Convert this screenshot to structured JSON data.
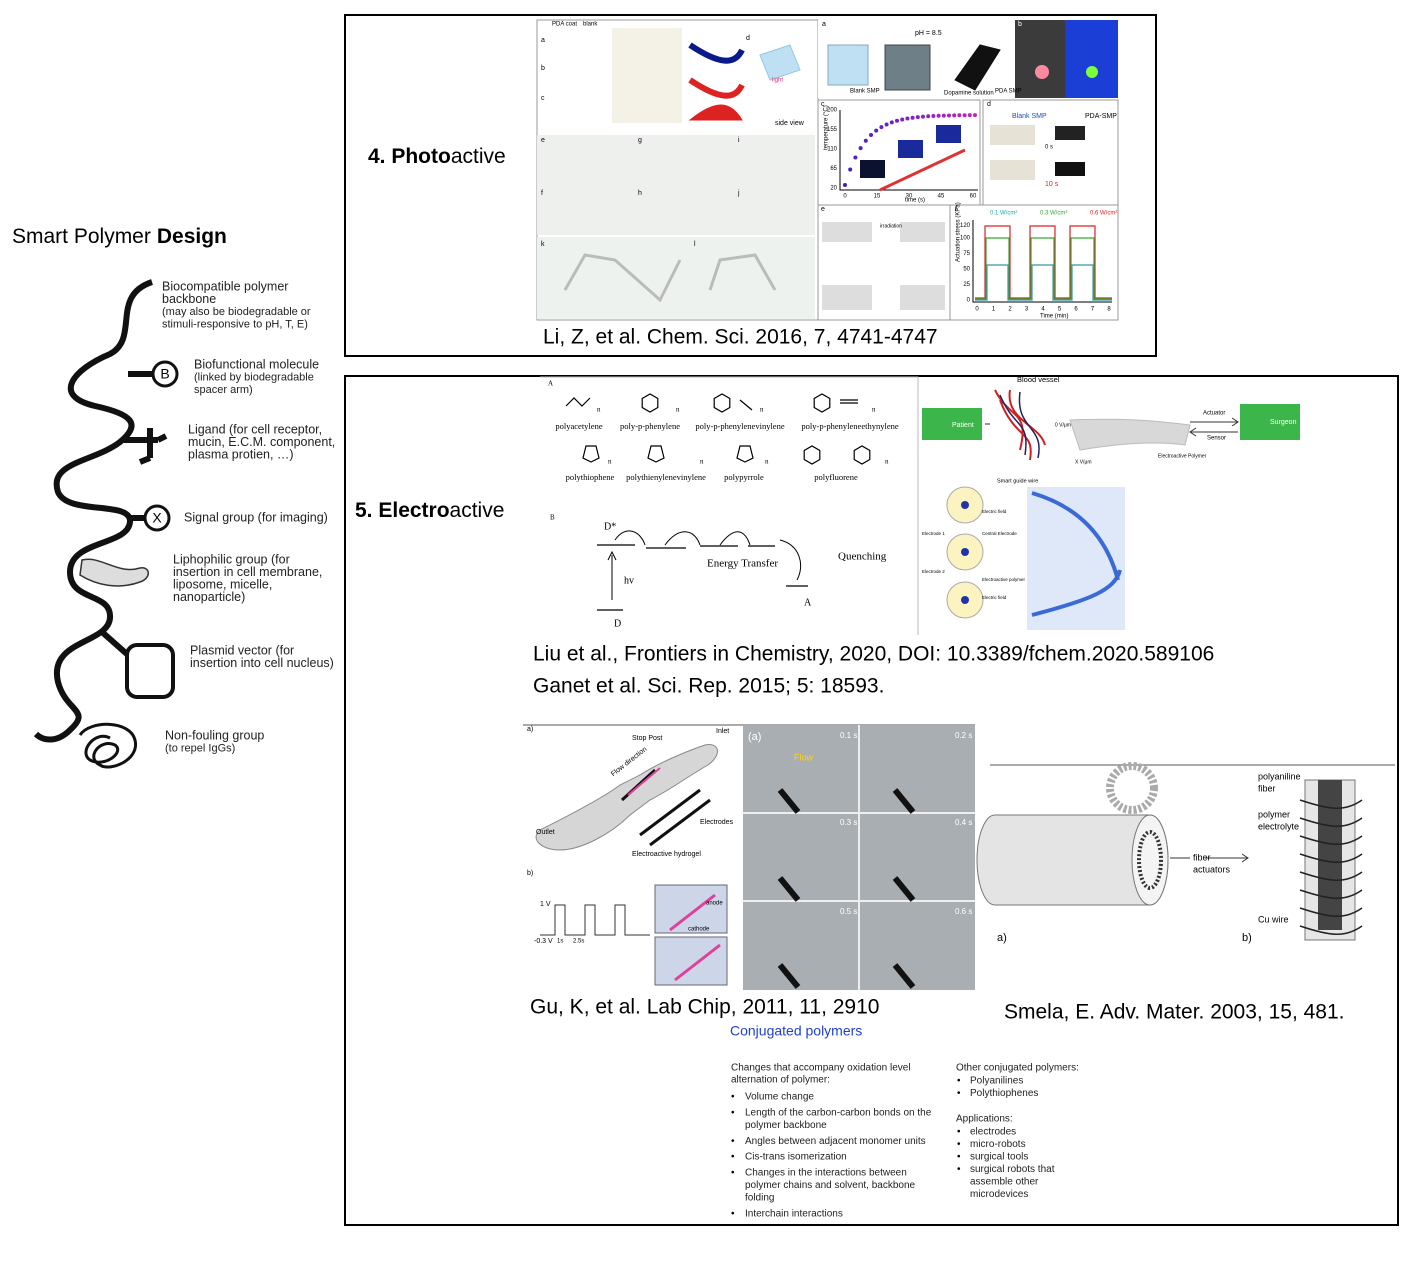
{
  "left_panel": {
    "title": {
      "regular": "Smart Polymer",
      "bold": "Design"
    },
    "symbols": [
      "B",
      "X"
    ],
    "labels": [
      [
        "Biocompatible polymer",
        "backbone",
        "(may also be biodegradable or",
        "stimuli-responsive to pH, T, E)"
      ],
      [
        "Biofunctional molecule",
        "(linked by biodegradable",
        "spacer arm)"
      ],
      [
        "Ligand (for cell receptor,",
        "mucin, E.C.M. component,",
        "plasma protien, …)"
      ],
      [
        "Signal group (for imaging)"
      ],
      [
        "Liphophilic group (for",
        "insertion in cell membrane,",
        "liposome, micelle,",
        "nanoparticle)"
      ],
      [
        "Plasmid vector (for",
        "insertion into cell nucleus)"
      ],
      [
        "Non-fouling group",
        "(to repel IgGs)"
      ]
    ]
  },
  "photoactive": {
    "heading": {
      "bold": "4. Photo",
      "regular": "active"
    },
    "citation": "Li, Z, et al. Chem. Sci. 2016, 7, 4741-4747",
    "figure_texts": [
      "PDA coat",
      "blank",
      "a",
      "b",
      "c",
      "d",
      "light",
      "side view",
      "e",
      "f",
      "g",
      "h",
      "i",
      "j",
      "k",
      "l",
      "a",
      "pH = 8.5",
      "Blank SMP",
      "Dopamine solution",
      "PDA SMP",
      "b",
      "c",
      "time (s)",
      "temperature (°C)",
      "d",
      "Blank SMP",
      "PDA-SMP",
      "0 s",
      "10 s",
      "e",
      "irradiation",
      "f",
      "0.1 W/cm²",
      "0.3 W/cm²",
      "0.6 W/cm²",
      "Time (min)",
      "Actuation stress (KPa)"
    ],
    "plot_c": {
      "xticks": [
        0,
        15,
        30,
        45,
        60
      ],
      "yticks": [
        20,
        65,
        110,
        155,
        200
      ]
    },
    "plot_f": {
      "xticks": [
        0,
        1,
        2,
        3,
        4,
        5,
        6,
        7,
        8
      ],
      "yticks": [
        0,
        25,
        50,
        75,
        100,
        120
      ]
    }
  },
  "electroactive": {
    "heading": {
      "bold": "5. Electro",
      "regular": "active"
    },
    "citations": [
      "Liu et al., Frontiers in Chemistry, 2020, DOI: 10.3389/fchem.2020.589106",
      "Ganet et al. Sci. Rep. 2015; 5: 18593."
    ],
    "chem_figure": {
      "panels": [
        "A",
        "B"
      ],
      "subscript": "n",
      "polymers": [
        "polyacetylene",
        "poly-p-phenylene",
        "poly-p-phenylenevinylene",
        "poly-p-phenyleneethynylene",
        "polythiophene",
        "polythienylenevinylene",
        "polypyrrole",
        "polyfluorene"
      ],
      "diagram": [
        "D*",
        "Energy Transfer",
        "Quenching",
        "hv",
        "D",
        "A"
      ]
    },
    "robot_figure": {
      "texts": [
        "Blood vessel",
        "Patient",
        "Surgeon",
        "Actuator",
        "Sensor",
        "0 V/μm",
        "X V/μm",
        "Electroactive Polymer",
        "Smart guide wire",
        "Electric field",
        "Electrode 1",
        "Central Electrode",
        "Electrode 2",
        "Electroactive polymer",
        "Electric field"
      ]
    },
    "gu_figure": {
      "texts": [
        "a)",
        "Stop Post",
        "Inlet",
        "Flow direction",
        "Electrodes",
        "Outlet",
        "Electroactive hydrogel",
        "b)",
        "1 V",
        "-0.3 V",
        "1s",
        "2.5s",
        "anode",
        "cathode",
        "(a)",
        "Flow",
        "0.1 s",
        "0.2 s",
        "0.3 s",
        "0.4 s",
        "0.5 s",
        "0.6 s"
      ],
      "citation": "Gu, K, et al. Lab Chip, 2011, 11, 2910"
    },
    "smela_figure": {
      "texts": [
        "polyaniline",
        "fiber",
        "polymer",
        "electrolyte",
        "Cu wire",
        "fiber",
        "actuators",
        "a)",
        "b)"
      ],
      "citation": "Smela, E. Adv. Mater. 2003, 15, 481."
    },
    "conjugated_polymers": {
      "title": "Conjugated polymers",
      "changes_heading": [
        "Changes that accompany oxidation level",
        "alternation of polymer:"
      ],
      "changes": [
        [
          "Volume change"
        ],
        [
          "Length of the carbon-carbon bonds on the",
          "polymer backbone"
        ],
        [
          "Angles between adjacent monomer units"
        ],
        [
          "Cis-trans isomerization"
        ],
        [
          "Changes in the interactions between",
          "polymer chains and solvent, backbone",
          "folding"
        ],
        [
          "Interchain interactions"
        ]
      ],
      "other_heading": "Other conjugated polymers:",
      "other": [
        "Polyanilines",
        "Polythiophenes"
      ],
      "applications_heading": "Applications:",
      "applications": [
        [
          "electrodes"
        ],
        [
          "micro-robots"
        ],
        [
          "surgical tools"
        ],
        [
          "surgical robots that",
          "assemble other",
          "microdevices"
        ]
      ],
      "bullet": "•"
    }
  }
}
